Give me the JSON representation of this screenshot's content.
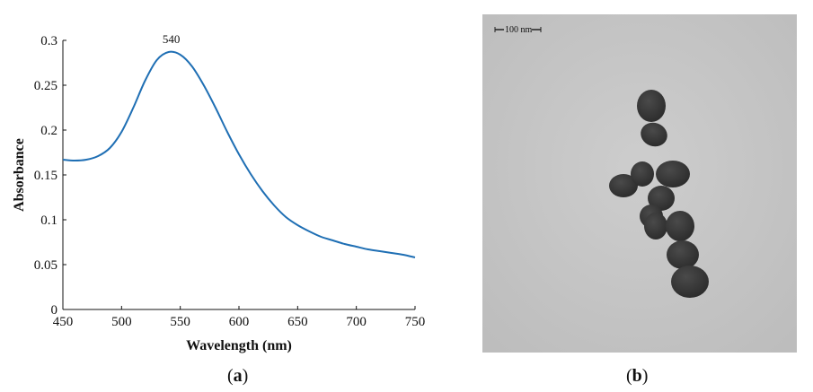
{
  "chart_data": {
    "type": "line",
    "xlabel": "Wavelength (nm)",
    "ylabel": "Absorbance",
    "xlim": [
      450,
      750
    ],
    "ylim": [
      0,
      0.3
    ],
    "x_ticks": [
      "450",
      "500",
      "550",
      "600",
      "650",
      "700",
      "750"
    ],
    "y_ticks": [
      "0",
      "0.05",
      "0.1",
      "0.15",
      "0.2",
      "0.25",
      "0.3"
    ],
    "series": [
      {
        "color": "#1f6fb4",
        "x": [
          450,
          460,
          470,
          480,
          490,
          500,
          510,
          520,
          530,
          540,
          550,
          560,
          570,
          580,
          590,
          600,
          610,
          620,
          630,
          640,
          650,
          660,
          670,
          680,
          690,
          700,
          710,
          720,
          730,
          740,
          750
        ],
        "y": [
          0.167,
          0.166,
          0.167,
          0.171,
          0.18,
          0.198,
          0.225,
          0.255,
          0.278,
          0.287,
          0.284,
          0.271,
          0.25,
          0.225,
          0.198,
          0.173,
          0.151,
          0.132,
          0.116,
          0.103,
          0.094,
          0.087,
          0.081,
          0.077,
          0.073,
          0.07,
          0.067,
          0.065,
          0.063,
          0.061,
          0.058
        ]
      }
    ],
    "annotations": [
      {
        "text": "540",
        "x": 540,
        "y": 0.287
      }
    ],
    "grid": false,
    "legend": "none"
  },
  "panels": {
    "left_label_open": "(",
    "left_label_letter": "a",
    "left_label_close": ")",
    "right_label_open": "(",
    "right_label_letter": "b",
    "right_label_close": ")"
  },
  "tem_image": {
    "scale_bar_text": "100 nm",
    "background_color": "#c9c9c9",
    "particle_color": "#3c3c3c"
  }
}
